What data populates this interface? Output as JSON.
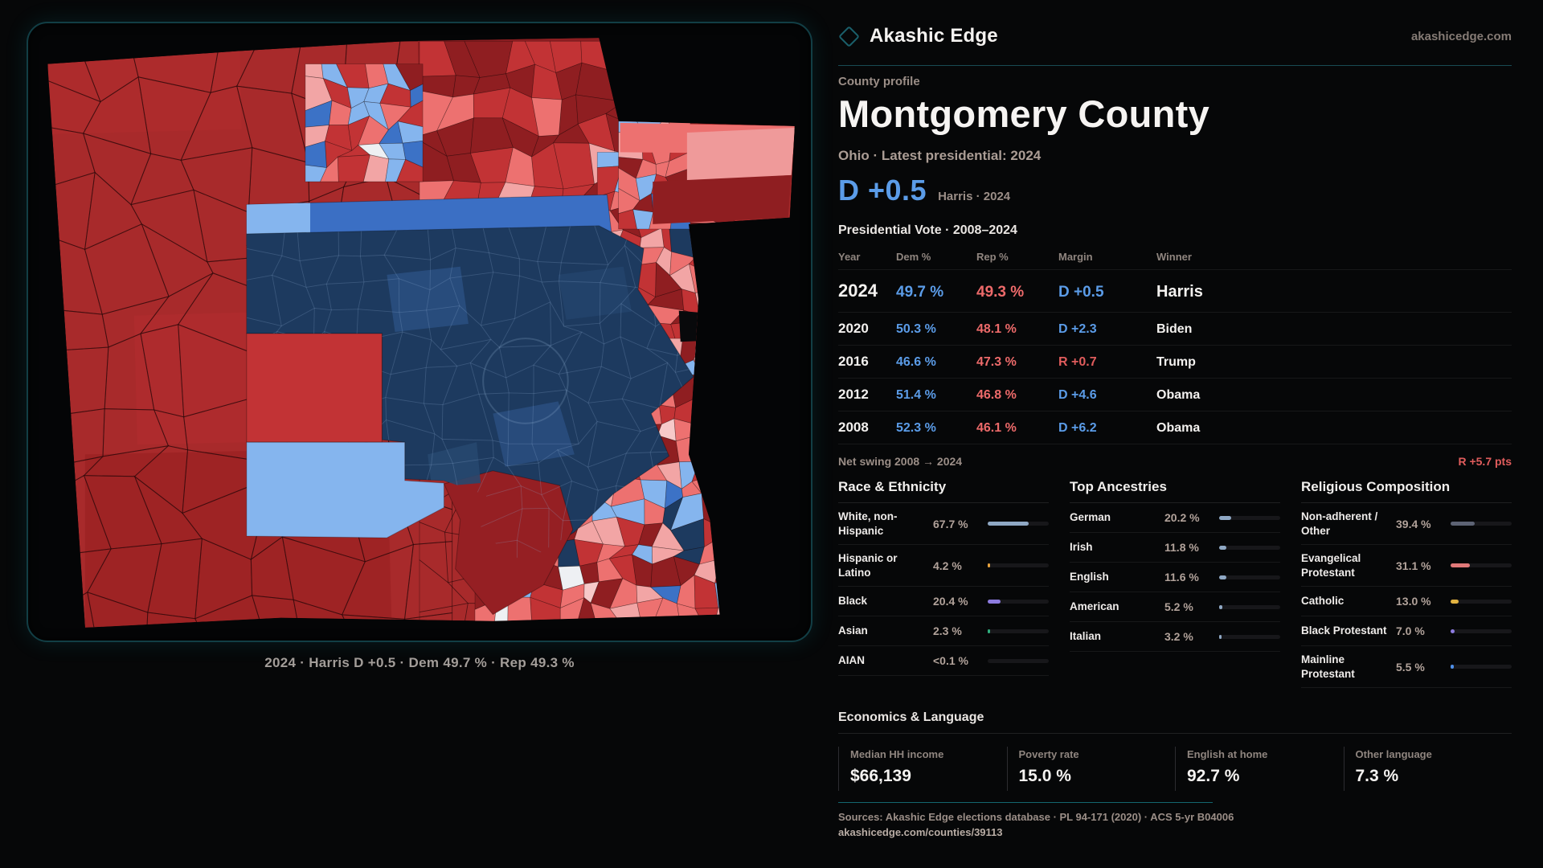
{
  "site": {
    "brand": "Akashic Edge",
    "domain": "akashicedge.com"
  },
  "map": {
    "caption": "2024 · Harris D +0.5 · Dem 49.7 % · Rep 49.3 %",
    "palette": {
      "bg": "#08090b",
      "base": "#a82a2b",
      "red": "#c23335",
      "darkRed": "#8f1e21",
      "deepRed": "#9c2224",
      "salmon": "#ed7170",
      "lightPink": "#f2a5a5",
      "palePink": "#f7c9c9",
      "white": "#eef0f3",
      "lightBlue": "#85b5ee",
      "medBlue": "#3c72c6",
      "royal": "#3b6fc4",
      "navy": "#1d3a5f",
      "navyLight": "#2a4f80"
    }
  },
  "profile": {
    "kicker": "County profile",
    "title": "Montgomery County",
    "subtitle": "Ohio · Latest presidential: 2024",
    "headline_margin": "D +0.5",
    "headline_note": "Harris · 2024"
  },
  "vote_table": {
    "title": "Presidential Vote · 2008–2024",
    "columns": [
      "Year",
      "Dem %",
      "Rep %",
      "Margin",
      "Winner"
    ],
    "rows": [
      {
        "year": "2024",
        "dem": "49.7 %",
        "rep": "49.3 %",
        "margin": "D +0.5",
        "margin_party": "D",
        "winner": "Harris",
        "emphasis": true
      },
      {
        "year": "2020",
        "dem": "50.3 %",
        "rep": "48.1 %",
        "margin": "D +2.3",
        "margin_party": "D",
        "winner": "Biden",
        "emphasis": false
      },
      {
        "year": "2016",
        "dem": "46.6 %",
        "rep": "47.3 %",
        "margin": "R +0.7",
        "margin_party": "R",
        "winner": "Trump",
        "emphasis": false
      },
      {
        "year": "2012",
        "dem": "51.4 %",
        "rep": "46.8 %",
        "margin": "D +4.6",
        "margin_party": "D",
        "winner": "Obama",
        "emphasis": false
      },
      {
        "year": "2008",
        "dem": "52.3 %",
        "rep": "46.1 %",
        "margin": "D +6.2",
        "margin_party": "D",
        "winner": "Obama",
        "emphasis": false
      }
    ],
    "net_swing_label": "Net swing 2008 → 2024",
    "net_swing_value": "R +5.7 pts"
  },
  "demographics": [
    {
      "title": "Race & Ethnicity",
      "rows": [
        {
          "label": "White, non-Hispanic",
          "value": "67.7 %",
          "pct": 67.7,
          "bar_color": "#8fa8c4"
        },
        {
          "label": "Hispanic or Latino",
          "value": "4.2 %",
          "pct": 4.2,
          "bar_color": "#e8a33d"
        },
        {
          "label": "Black",
          "value": "20.4 %",
          "pct": 20.4,
          "bar_color": "#8d7ce0"
        },
        {
          "label": "Asian",
          "value": "2.3 %",
          "pct": 2.3,
          "bar_color": "#2fae7e"
        },
        {
          "label": "AIAN",
          "value": "<0.1 %",
          "pct": 0,
          "bar_color": "#8fa8c4"
        }
      ]
    },
    {
      "title": "Top Ancestries",
      "rows": [
        {
          "label": "German",
          "value": "20.2 %",
          "pct": 20.2,
          "bar_color": "#8fa8c4"
        },
        {
          "label": "Irish",
          "value": "11.8 %",
          "pct": 11.8,
          "bar_color": "#8fa8c4"
        },
        {
          "label": "English",
          "value": "11.6 %",
          "pct": 11.6,
          "bar_color": "#8fa8c4"
        },
        {
          "label": "American",
          "value": "5.2 %",
          "pct": 5.2,
          "bar_color": "#8fa8c4"
        },
        {
          "label": "Italian",
          "value": "3.2 %",
          "pct": 3.2,
          "bar_color": "#8fa8c4"
        }
      ]
    },
    {
      "title": "Religious Composition",
      "rows": [
        {
          "label": "Non-adherent / Other",
          "value": "39.4 %",
          "pct": 39.4,
          "bar_color": "#5d6374"
        },
        {
          "label": "Evangelical Protestant",
          "value": "31.1 %",
          "pct": 31.1,
          "bar_color": "#e07878"
        },
        {
          "label": "Catholic",
          "value": "13.0 %",
          "pct": 13.0,
          "bar_color": "#e3b341"
        },
        {
          "label": "Black Protestant",
          "value": "7.0 %",
          "pct": 7.0,
          "bar_color": "#8d7ce0"
        },
        {
          "label": "Mainline Protestant",
          "value": "5.5 %",
          "pct": 5.5,
          "bar_color": "#4f8fe8"
        }
      ]
    }
  ],
  "economics": {
    "title": "Economics & Language",
    "stats": [
      {
        "label": "Median HH income",
        "value": "$66,139"
      },
      {
        "label": "Poverty rate",
        "value": "15.0 %"
      },
      {
        "label": "English at home",
        "value": "92.7 %"
      },
      {
        "label": "Other language",
        "value": "7.3 %"
      }
    ]
  },
  "footer": {
    "sources": "Sources: Akashic Edge elections database · PL 94-171 (2020) · ACS 5-yr B04006",
    "permalink": "akashicedge.com/counties/39113"
  },
  "chart_data": [
    {
      "type": "table",
      "title": "Presidential Vote 2008–2024",
      "columns": [
        "Year",
        "Dem %",
        "Rep %",
        "Margin",
        "Winner"
      ],
      "rows": [
        [
          2024,
          49.7,
          49.3,
          "D +0.5",
          "Harris"
        ],
        [
          2020,
          50.3,
          48.1,
          "D +2.3",
          "Biden"
        ],
        [
          2016,
          46.6,
          47.3,
          "R +0.7",
          "Trump"
        ],
        [
          2012,
          51.4,
          46.8,
          "D +4.6",
          "Obama"
        ],
        [
          2008,
          52.3,
          46.1,
          "D +6.2",
          "Obama"
        ]
      ]
    },
    {
      "type": "bar",
      "title": "Race & Ethnicity",
      "unit": "%",
      "categories": [
        "White, non-Hispanic",
        "Hispanic or Latino",
        "Black",
        "Asian",
        "AIAN"
      ],
      "values": [
        67.7,
        4.2,
        20.4,
        2.3,
        0.05
      ]
    },
    {
      "type": "bar",
      "title": "Top Ancestries",
      "unit": "%",
      "categories": [
        "German",
        "Irish",
        "English",
        "American",
        "Italian"
      ],
      "values": [
        20.2,
        11.8,
        11.6,
        5.2,
        3.2
      ]
    },
    {
      "type": "bar",
      "title": "Religious Composition",
      "unit": "%",
      "categories": [
        "Non-adherent / Other",
        "Evangelical Protestant",
        "Catholic",
        "Black Protestant",
        "Mainline Protestant"
      ],
      "values": [
        39.4,
        31.1,
        13.0,
        7.0,
        5.5
      ]
    },
    {
      "type": "bar",
      "title": "Economics & Language",
      "categories": [
        "Median HH income ($)",
        "Poverty rate %",
        "English at home %",
        "Other language %"
      ],
      "values": [
        66139,
        15.0,
        92.7,
        7.3
      ]
    }
  ]
}
